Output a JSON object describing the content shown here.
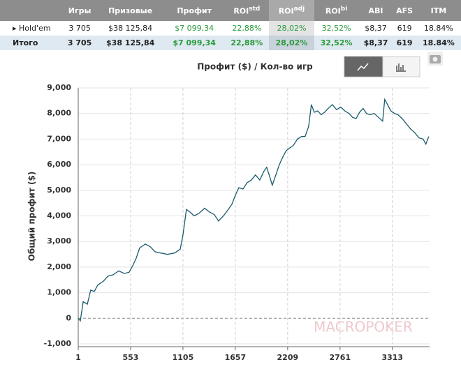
{
  "table": {
    "headers": [
      "Игры",
      "Призовые",
      "Профит",
      {
        "text": "ROI",
        "sup": "std"
      },
      {
        "text": "ROI",
        "sup": "adj"
      },
      {
        "text": "ROI",
        "sup": "bi"
      },
      "ABI",
      "AFS",
      "ITM"
    ],
    "rows": [
      [
        "Hold'em",
        "3 705",
        "$38 125,84",
        "$7 099,34",
        "22,88%",
        "28,02%",
        "32,52%",
        "$8,37",
        "619",
        "18.84%"
      ],
      [
        "Итого",
        "3 705",
        "$38 125,84",
        "$7 099,34",
        "22,88%",
        "28,02%",
        "32,52%",
        "$8,37",
        "619",
        "18.84%"
      ]
    ]
  },
  "chart_data": {
    "type": "line",
    "title": "Профит ($) / Кол-во игр",
    "y_label": "Общий профит ($)",
    "watermark": "MACROPOKER",
    "color": "#1a5a6c",
    "grid": true,
    "xlim": [
      1,
      3705
    ],
    "xticks": [
      1,
      553,
      1105,
      1657,
      2209,
      2761,
      3313
    ],
    "ylim": [
      -1000,
      9000
    ],
    "yticks": [
      {
        "value": -1000,
        "label": "-1,000"
      },
      0,
      {
        "value": 1000,
        "label": "1,000"
      },
      {
        "value": 2000,
        "label": "2,000"
      },
      {
        "value": 3000,
        "label": "3,000"
      },
      {
        "value": 4000,
        "label": "4,000"
      },
      {
        "value": 5000,
        "label": "5,000"
      },
      {
        "value": 6000,
        "label": "6,000"
      },
      {
        "value": 7000,
        "label": "7,000"
      },
      {
        "value": 8000,
        "label": "8,000"
      },
      {
        "value": 9000,
        "label": "9,000"
      }
    ],
    "x": [
      1,
      23,
      53,
      97,
      133,
      170,
      207,
      266,
      317,
      369,
      428,
      487,
      538,
      575,
      612,
      649,
      708,
      759,
      811,
      870,
      943,
      1017,
      1076,
      1105,
      1142,
      1179,
      1223,
      1274,
      1333,
      1385,
      1436,
      1480,
      1532,
      1583,
      1620,
      1657,
      1694,
      1738,
      1782,
      1826,
      1870,
      1915,
      1959,
      1988,
      2018,
      2047,
      2084,
      2121,
      2158,
      2194,
      2231,
      2268,
      2312,
      2356,
      2393,
      2430,
      2459,
      2489,
      2526,
      2562,
      2599,
      2636,
      2680,
      2724,
      2768,
      2812,
      2857,
      2893,
      2930,
      2967,
      3004,
      3040,
      3077,
      3121,
      3166,
      3210,
      3232,
      3262,
      3298,
      3335,
      3372,
      3416,
      3460,
      3504,
      3549,
      3593,
      3637,
      3666,
      3696
    ],
    "values": [
      0,
      -100,
      650,
      550,
      1100,
      1050,
      1300,
      1450,
      1650,
      1700,
      1850,
      1750,
      1800,
      2050,
      2350,
      2750,
      2900,
      2800,
      2600,
      2550,
      2500,
      2550,
      2700,
      3250,
      4250,
      4150,
      4000,
      4100,
      4300,
      4150,
      4050,
      3800,
      4000,
      4250,
      4450,
      4800,
      5100,
      5050,
      5300,
      5400,
      5600,
      5400,
      5750,
      5900,
      5550,
      5200,
      5600,
      6000,
      6300,
      6550,
      6650,
      6750,
      7000,
      7100,
      7100,
      7500,
      8350,
      8050,
      8100,
      7950,
      8050,
      8200,
      8350,
      8150,
      8250,
      8100,
      8000,
      7850,
      7800,
      8050,
      8200,
      8000,
      7950,
      8000,
      7850,
      7700,
      8550,
      8350,
      8100,
      8000,
      7950,
      7800,
      7600,
      7400,
      7250,
      7050,
      7000,
      6800,
      7100
    ]
  }
}
